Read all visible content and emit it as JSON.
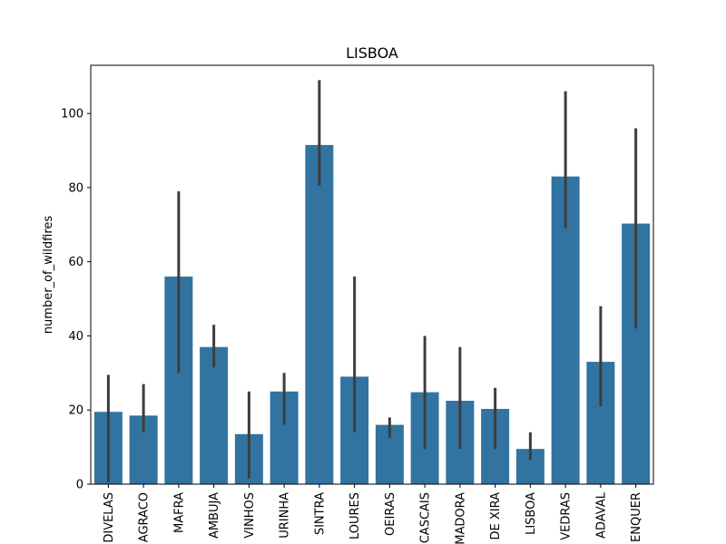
{
  "chart_data": {
    "type": "bar",
    "title": "LISBOA",
    "xlabel": "",
    "ylabel": "number_of_wildfires",
    "ylim": [
      0,
      113
    ],
    "yticks": [
      0,
      20,
      40,
      60,
      80,
      100
    ],
    "grid": false,
    "bar_color": "#3274a1",
    "errorbar_color": "#3d3d3d",
    "categories": [
      "ODIVELAS",
      "SOBRAL DE MONTE AGRACO",
      "MAFRA",
      "AZAMBUJA",
      "ARRUDA DOS VINHOS",
      "LOURINHA",
      "SINTRA",
      "LOURES",
      "OEIRAS",
      "CASCAIS",
      "AMADORA",
      "VILA FRANCA DE XIRA",
      "LISBOA",
      "TORRES VEDRAS",
      "CADAVAL",
      "ALENQUER"
    ],
    "category_labels_visible": [
      "DIVELAS",
      "AGRACO",
      "MAFRA",
      "AMBUJA",
      "VINHOS",
      "URINHA",
      "SINTRA",
      "LOURES",
      "OEIRAS",
      "CASCAIS",
      "MADORA",
      "DE XIRA",
      "LISBOA",
      "VEDRAS",
      "ADAVAL",
      "ENQUER"
    ],
    "values": [
      19.5,
      18.5,
      56,
      37,
      13.5,
      25,
      91.5,
      29,
      16,
      24.8,
      22.5,
      20.3,
      9.5,
      83,
      33,
      70.3
    ],
    "error_low": [
      0.5,
      14,
      30,
      31.5,
      1.5,
      16,
      80.5,
      14,
      12.5,
      9.5,
      9.5,
      9.5,
      6.5,
      69,
      21,
      42
    ],
    "error_high": [
      29.5,
      27,
      79,
      43,
      25,
      30,
      109,
      56,
      18,
      40,
      37,
      26,
      14,
      106,
      48,
      96
    ]
  }
}
